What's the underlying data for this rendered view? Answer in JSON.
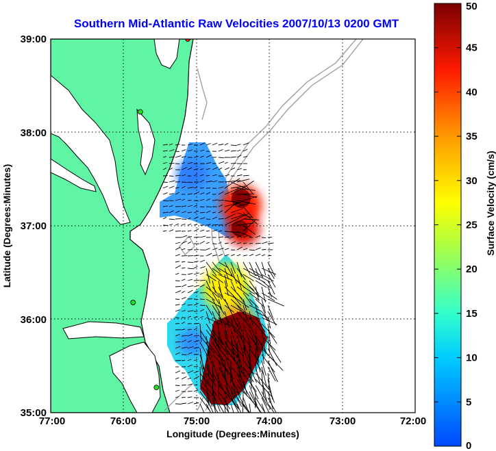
{
  "chart_data": {
    "type": "map",
    "title": "Southern Mid-Atlantic Raw Velocities 2007/10/13 0200 GMT",
    "xlabel": "Longitude (Degrees:Minutes)",
    "ylabel": "Latitude (Degrees:Minutes)",
    "x_ticks": [
      "77:00",
      "76:00",
      "75:00",
      "74:00",
      "73:00",
      "72:00"
    ],
    "y_ticks": [
      "35:00",
      "36:00",
      "37:00",
      "38:00",
      "39:00"
    ],
    "xlim": [
      -77,
      -72
    ],
    "ylim": [
      35,
      39
    ],
    "grid": true,
    "colorbar": {
      "label": "Surface Velocity (cm/s)",
      "range": [
        0,
        50
      ],
      "ticks": [
        "0",
        "5",
        "10",
        "15",
        "20",
        "25",
        "30",
        "35",
        "40",
        "45",
        "50"
      ]
    },
    "colors": {
      "land": "#5ff5a5",
      "coast": "#000000",
      "bathymetry": "#999999",
      "station_active": "#22dd22",
      "station_inactive": "#ff2222"
    },
    "stations": [
      {
        "lon": -75.12,
        "lat": 39.0,
        "status": "inactive"
      },
      {
        "lon": -75.77,
        "lat": 38.22,
        "status": "active"
      },
      {
        "lon": -75.87,
        "lat": 36.18,
        "status": "active"
      },
      {
        "lon": -75.55,
        "lat": 35.27,
        "status": "active"
      }
    ],
    "velocity_field": [
      {
        "lon": -75.5,
        "lat": 37.2,
        "speed": 8
      },
      {
        "lon": -75.2,
        "lat": 37.6,
        "speed": 9
      },
      {
        "lon": -74.6,
        "lat": 37.2,
        "speed": 45
      },
      {
        "lon": -74.6,
        "lat": 36.95,
        "speed": 47
      },
      {
        "lon": -74.7,
        "lat": 36.4,
        "speed": 27
      },
      {
        "lon": -74.5,
        "lat": 35.5,
        "speed": 50
      },
      {
        "lon": -75.3,
        "lat": 35.9,
        "speed": 10
      }
    ]
  }
}
